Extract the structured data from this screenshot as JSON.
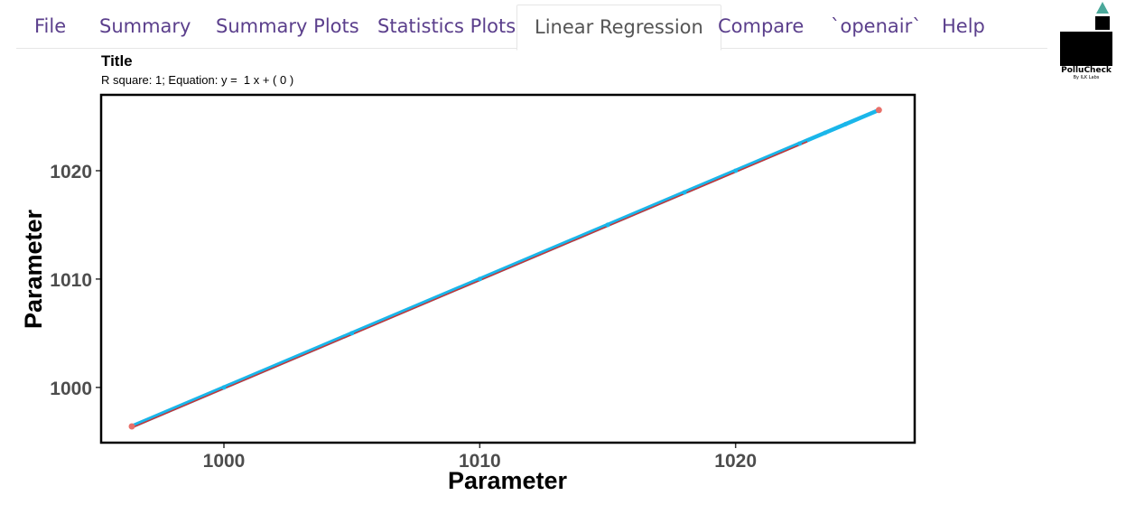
{
  "nav": {
    "tabs": [
      {
        "label": "File",
        "active": false
      },
      {
        "label": "Summary",
        "active": false
      },
      {
        "label": "Summary Plots",
        "active": false
      },
      {
        "label": "Statistics Plots",
        "active": false
      },
      {
        "label": "Linear Regression",
        "active": true
      },
      {
        "label": "Compare",
        "active": false
      },
      {
        "label": "`openair`",
        "active": false
      },
      {
        "label": "Help",
        "active": false
      }
    ]
  },
  "logo": {
    "name": "PolluCheck",
    "tagline": "By ILK Labs",
    "accent": "#4aa89a"
  },
  "chart_data": {
    "type": "scatter",
    "title": "Title",
    "subtitle": "R square: 1; Equation: y =  1 x + ( 0 )",
    "xlabel": "Parameter",
    "ylabel": "Parameter",
    "xlim": [
      995.2,
      1027.0
    ],
    "ylim": [
      994.9,
      1027.0
    ],
    "xticks": [
      1000,
      1010,
      1020
    ],
    "yticks": [
      1000,
      1010,
      1020
    ],
    "grid": false,
    "regression_line": {
      "slope": 1,
      "intercept": 0,
      "color": "#cc3333"
    },
    "series": [
      {
        "color": "#1ab6ea",
        "point_color": "#e8706a",
        "x": [
          996.4,
          1000,
          1005,
          1010,
          1015,
          1018,
          1020,
          1022.5,
          1023.5,
          1024.3,
          1025.6
        ],
        "y": [
          996.4,
          1000,
          1005,
          1010,
          1015,
          1018,
          1020,
          1022.5,
          1023.5,
          1024.3,
          1025.6
        ]
      }
    ]
  }
}
